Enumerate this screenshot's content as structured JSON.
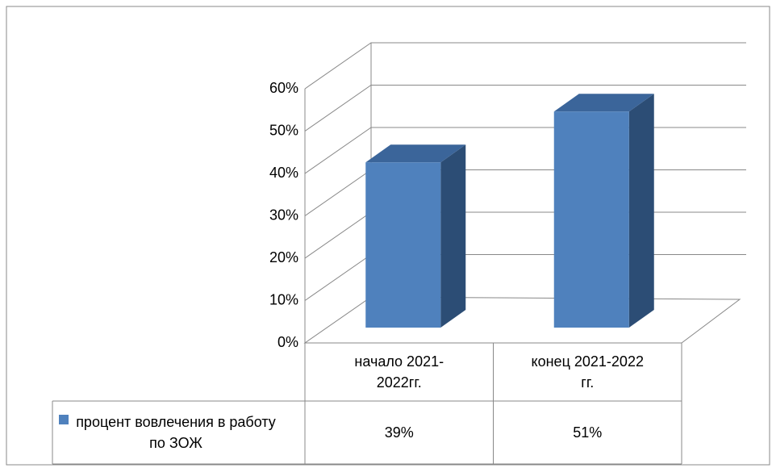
{
  "chart_data": {
    "type": "bar3d",
    "categories": [
      "начало 2021-2022гг.",
      "конец 2021-2022 гг."
    ],
    "series": [
      {
        "name": "процент вовлечения в работу по ЗОЖ",
        "color": "#4f81bd",
        "values": [
          39,
          51
        ],
        "value_labels": [
          "39%",
          "51%"
        ]
      }
    ],
    "ylim": [
      0,
      60
    ],
    "yticks": [
      {
        "value": 0,
        "label": "0%"
      },
      {
        "value": 10,
        "label": "10%"
      },
      {
        "value": 20,
        "label": "20%"
      },
      {
        "value": 30,
        "label": "30%"
      },
      {
        "value": 40,
        "label": "40%"
      },
      {
        "value": 50,
        "label": "50%"
      },
      {
        "value": 60,
        "label": "60%"
      }
    ],
    "grid": true,
    "data_table": true
  }
}
